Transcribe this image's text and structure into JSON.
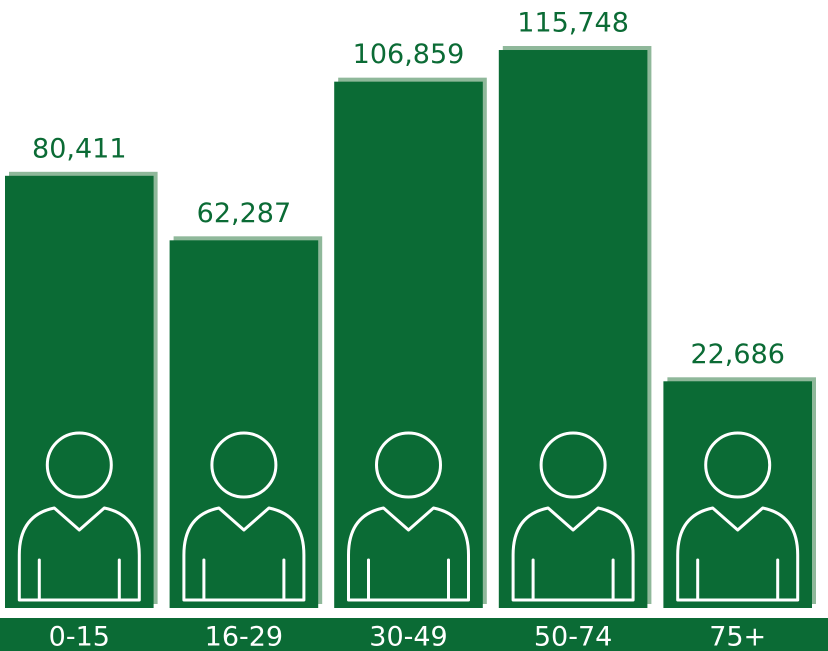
{
  "chart_data": {
    "type": "bar",
    "categories": [
      "0-15",
      "16-29",
      "30-49",
      "50-74",
      "75+"
    ],
    "values": [
      80411,
      62287,
      106859,
      115748,
      22686
    ],
    "value_labels": [
      "80,411",
      "62,287",
      "106,859",
      "115,748",
      "22,686"
    ],
    "color": "#0b6b35",
    "ylim": [
      -41000,
      118000
    ]
  }
}
